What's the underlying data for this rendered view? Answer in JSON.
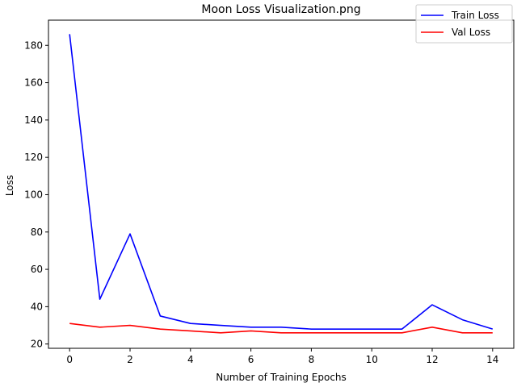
{
  "chart_data": {
    "type": "line",
    "title": "Moon Loss Visualization.png",
    "xlabel": "Number of Training Epochs",
    "ylabel": "Loss",
    "x": [
      0,
      1,
      2,
      3,
      4,
      5,
      6,
      7,
      8,
      9,
      10,
      11,
      12,
      13,
      14
    ],
    "xlim": [
      -0.7,
      14.7
    ],
    "ylim": [
      17.7,
      193.5
    ],
    "xticks": [
      0,
      2,
      4,
      6,
      8,
      10,
      12,
      14
    ],
    "yticks": [
      20,
      40,
      60,
      80,
      100,
      120,
      140,
      160,
      180
    ],
    "grid": false,
    "legend_position": "top-right",
    "series": [
      {
        "name": "Train Loss",
        "color": "#0000ff",
        "values": [
          186,
          44,
          79,
          35,
          31,
          30,
          29,
          29,
          28,
          28,
          28,
          28,
          41,
          33,
          28
        ]
      },
      {
        "name": "Val Loss",
        "color": "#ff0000",
        "values": [
          31,
          29,
          30,
          28,
          27,
          26,
          27,
          26,
          26,
          26,
          26,
          26,
          29,
          26,
          26
        ]
      }
    ]
  }
}
